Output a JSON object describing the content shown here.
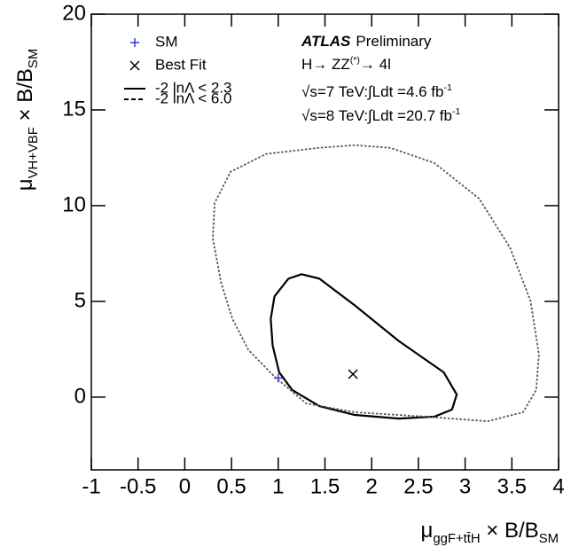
{
  "chart_data": {
    "type": "contour",
    "x_label": {
      "parts": [
        "μ",
        "ggF+tt̄H",
        " × B/B",
        "SM"
      ],
      "shift": "sub"
    },
    "y_label": {
      "parts": [
        "μ",
        "VH+VBF",
        " × B/B",
        "SM"
      ],
      "shift": "sub"
    },
    "xlim": [
      -1,
      4
    ],
    "ylim": [
      -3.8,
      20
    ],
    "xticks": [
      -1,
      -0.5,
      0,
      0.5,
      1,
      1.5,
      2,
      2.5,
      3,
      3.5,
      4
    ],
    "yticks": [
      0,
      5,
      10,
      15,
      20
    ],
    "experiment": "ATLAS",
    "status": "Preliminary",
    "annotations": [
      {
        "parts": [
          "H→ ZZ",
          "(*)",
          "→ 4l"
        ],
        "shift": "super"
      },
      {
        "parts": [
          "√s=7 TeV:∫Ldt =4.6 fb",
          "-1"
        ],
        "shift": "super"
      },
      {
        "parts": [
          "√s=8 TeV:∫Ldt =20.7 fb",
          "-1"
        ],
        "shift": "super"
      }
    ],
    "series": [
      {
        "name": "SM",
        "marker": "plus",
        "color": "#3333dd",
        "x": [
          1
        ],
        "y": [
          1
        ]
      },
      {
        "name": "Best Fit",
        "marker": "cross",
        "color": "#000000",
        "x": [
          1.8
        ],
        "y": [
          1.2
        ]
      },
      {
        "name": "-2 lnΛ < 2.3",
        "style": "solid",
        "color": "#000000",
        "x": [
          1.25,
          1.44,
          1.82,
          2.29,
          2.77,
          2.91,
          2.86,
          2.67,
          2.29,
          1.82,
          1.44,
          1.15,
          1.01,
          0.94,
          0.92,
          0.96,
          1.11
        ],
        "y": [
          6.42,
          6.19,
          4.79,
          2.93,
          1.3,
          0.14,
          -0.65,
          -1.02,
          -1.12,
          -0.93,
          -0.47,
          0.37,
          1.3,
          2.7,
          4.09,
          5.26,
          6.19
        ]
      },
      {
        "name": "-2 lnΛ < 6.0",
        "style": "dashed",
        "color": "#555555",
        "x": [
          1.82,
          1.44,
          0.87,
          0.49,
          0.32,
          0.3,
          0.39,
          0.51,
          0.68,
          0.96,
          1.3,
          1.82,
          2.58,
          3.24,
          3.62,
          3.76,
          3.79,
          3.7,
          3.48,
          3.15,
          2.67,
          2.2
        ],
        "y": [
          13.16,
          13.02,
          12.7,
          11.77,
          10.14,
          8.28,
          5.95,
          4.09,
          2.47,
          1.07,
          -0.33,
          -0.79,
          -1.02,
          -1.26,
          -0.79,
          0.37,
          2.23,
          5.02,
          7.81,
          10.37,
          12.23,
          13.02
        ]
      }
    ]
  }
}
